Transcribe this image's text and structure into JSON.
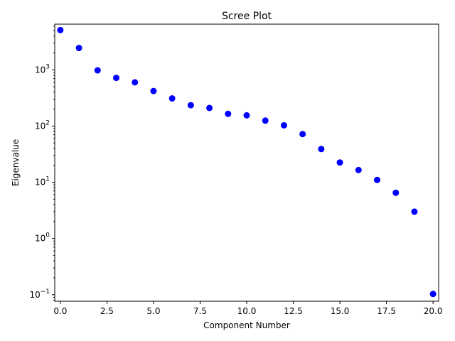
{
  "chart_data": {
    "type": "scatter",
    "title": "Scree Plot",
    "xlabel": "Component Number",
    "ylabel": "Eigenvalue",
    "xlim": [
      -0.3,
      20.3
    ],
    "ylim": [
      0.0765,
      6500
    ],
    "yscale": "log",
    "grid": false,
    "marker_color": "#0000ff",
    "x_ticks": [
      0.0,
      2.5,
      5.0,
      7.5,
      10.0,
      12.5,
      15.0,
      17.5,
      20.0
    ],
    "x_tick_labels": [
      "0.0",
      "2.5",
      "5.0",
      "7.5",
      "10.0",
      "12.5",
      "15.0",
      "17.5",
      "20.0"
    ],
    "y_ticks": [
      {
        "value": 0.1,
        "base": "10",
        "exp": "−1"
      },
      {
        "value": 1,
        "base": "10",
        "exp": "0"
      },
      {
        "value": 10,
        "base": "10",
        "exp": "1"
      },
      {
        "value": 100,
        "base": "10",
        "exp": "2"
      },
      {
        "value": 1000,
        "base": "10",
        "exp": "3"
      }
    ],
    "x": [
      0,
      1,
      2,
      3,
      4,
      5,
      6,
      7,
      8,
      9,
      10,
      11,
      12,
      13,
      14,
      15,
      16,
      17,
      18,
      19,
      20
    ],
    "y": [
      5100,
      2450,
      980,
      720,
      600,
      420,
      310,
      235,
      210,
      165,
      155,
      125,
      103,
      72,
      39,
      22.5,
      16.5,
      11,
      6.5,
      3,
      0.103
    ]
  }
}
